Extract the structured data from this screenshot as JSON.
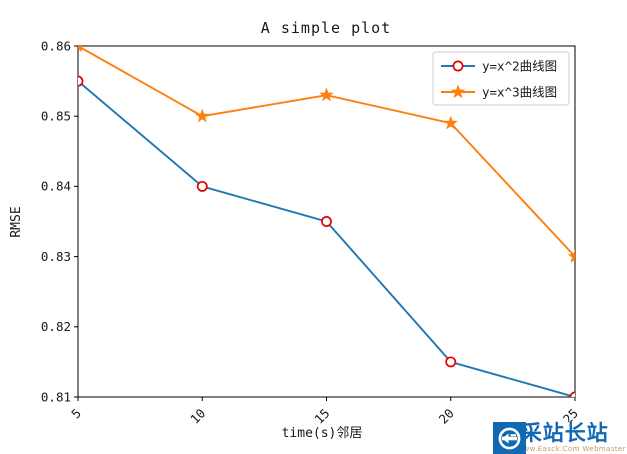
{
  "figure": {
    "background": "#ffffff",
    "axis_color": "#000000",
    "tick_label_color": "#1a1a1a"
  },
  "chart_data": {
    "type": "line",
    "title": "A simple plot",
    "xlabel": "time(s)邻居",
    "ylabel": "RMSE",
    "x": [
      5,
      10,
      15,
      20,
      25
    ],
    "series": [
      {
        "name": "y=x^2曲线图",
        "values": [
          0.855,
          0.84,
          0.835,
          0.815,
          0.81
        ],
        "color": "#1f77b4",
        "marker": "circle",
        "marker_edge": "#e50000",
        "marker_face": "#ffffff"
      },
      {
        "name": "y=x^3曲线图",
        "values": [
          0.86,
          0.85,
          0.853,
          0.849,
          0.83
        ],
        "color": "#ff7f0e",
        "marker": "star",
        "marker_edge": "#ff7f0e",
        "marker_face": "#ff7f0e"
      }
    ],
    "xlim": [
      5,
      25
    ],
    "ylim": [
      0.81,
      0.86
    ],
    "xticks": [
      5,
      10,
      15,
      20,
      25
    ],
    "yticks": [
      0.81,
      0.82,
      0.83,
      0.84,
      0.85,
      0.86
    ],
    "x_tick_rotation": 45,
    "y_tick_decimals": 2,
    "grid": false,
    "legend_position": "upper right",
    "legend_border_color": "#cccccc"
  },
  "watermark": {
    "site_name": "易采站长站",
    "tagline": "—— Www.Easck.Com Webmaster",
    "logo_icon": "easck-logo",
    "logo_color": "#1268b3",
    "site_name_color": "#1268b3",
    "tagline_color": "#c49a6c"
  }
}
